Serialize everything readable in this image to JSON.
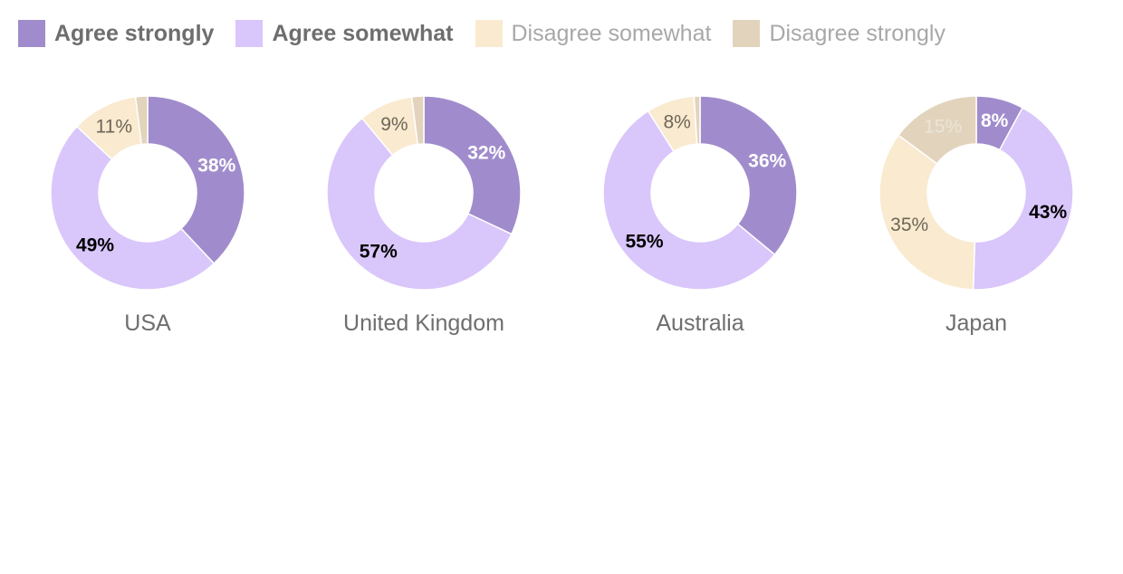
{
  "legend": [
    {
      "label": "Agree strongly",
      "color": "#a08ccc"
    },
    {
      "label": "Agree somewhat",
      "color": "#d9c6fb"
    },
    {
      "label": "Disagree somewhat",
      "color": "#f9ead0"
    },
    {
      "label": "Disagree strongly",
      "color": "#e2d4bc"
    }
  ],
  "chart_data": {
    "type": "pie",
    "categories": [
      "Agree strongly",
      "Agree somewhat",
      "Disagree somewhat",
      "Disagree strongly"
    ],
    "colors": [
      "#a08ccc",
      "#d9c6fb",
      "#f9ead0",
      "#e2d4bc"
    ],
    "label_colors": [
      "#ffffff",
      "#000000",
      "#6e6658",
      "#ebe4d8"
    ],
    "donut": true,
    "legend_position": "top-left",
    "series": [
      {
        "name": "USA",
        "values": [
          38,
          49,
          11,
          2
        ],
        "labels": [
          "38%",
          "49%",
          "11%",
          ""
        ]
      },
      {
        "name": "United Kingdom",
        "values": [
          32,
          57,
          9,
          2
        ],
        "labels": [
          "32%",
          "57%",
          "9%",
          ""
        ]
      },
      {
        "name": "Australia",
        "values": [
          36,
          55,
          8,
          1
        ],
        "labels": [
          "36%",
          "55%",
          "8%",
          ""
        ]
      },
      {
        "name": "Japan",
        "values": [
          8,
          43,
          35,
          15
        ],
        "labels": [
          "8%",
          "43%",
          "35%",
          "15%"
        ]
      }
    ]
  }
}
